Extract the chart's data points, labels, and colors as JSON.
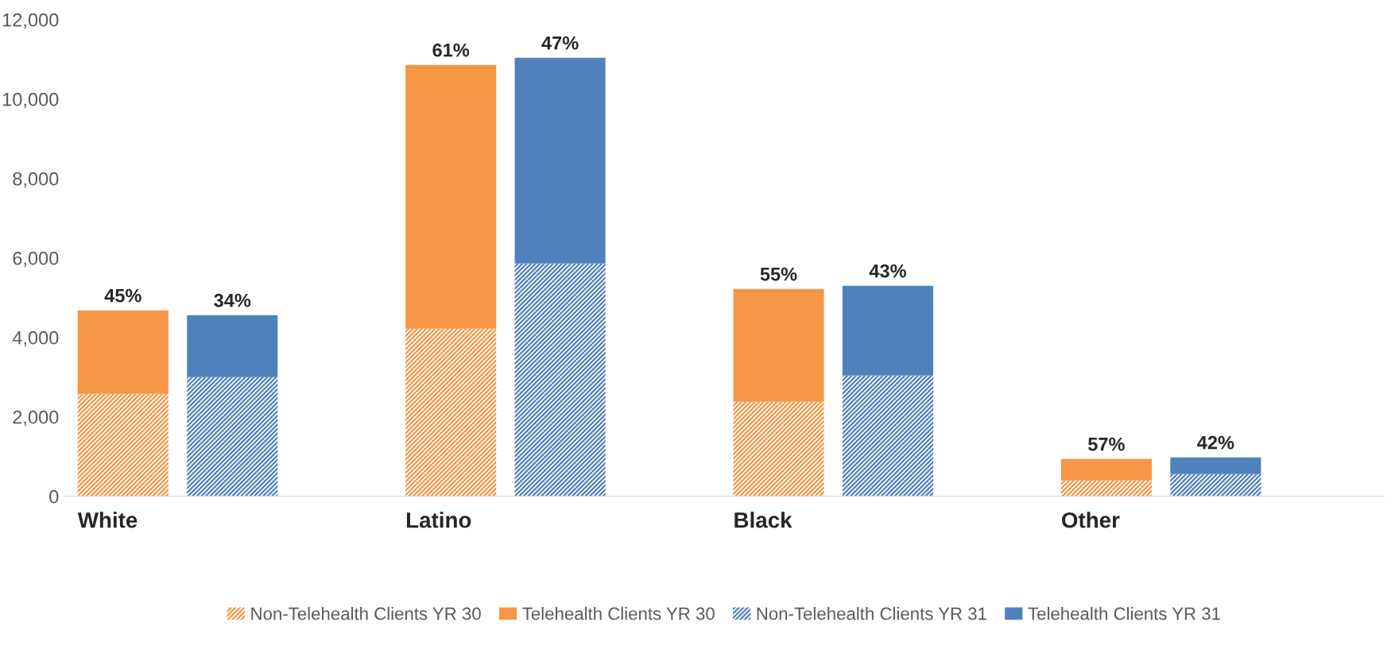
{
  "chart_data": {
    "type": "bar",
    "stacked": true,
    "categories": [
      "White",
      null,
      null,
      "Latino",
      null,
      null,
      "Black",
      null,
      null,
      "Other",
      null,
      null
    ],
    "series": [
      {
        "name": "Non-Telehealth Clients YR 30",
        "color": "#f79646",
        "values": [
          2580,
          null,
          null,
          4220,
          null,
          null,
          2380,
          null,
          null,
          400,
          null,
          null
        ]
      },
      {
        "name": "Telehealth Clients YR 30",
        "color": "#f79646",
        "values": [
          2100,
          null,
          null,
          6640,
          null,
          null,
          2840,
          null,
          null,
          540,
          null,
          null
        ]
      },
      {
        "name": "Non-Telehealth Clients YR 31",
        "color": "#4f81bd",
        "values": [
          null,
          3000,
          null,
          null,
          5860,
          null,
          null,
          3040,
          null,
          null,
          560,
          null
        ]
      },
      {
        "name": "Telehealth Clients YR 31",
        "color": "#4f81bd",
        "values": [
          null,
          1560,
          null,
          null,
          5180,
          null,
          null,
          2260,
          null,
          null,
          420,
          null
        ]
      }
    ],
    "annotations": [
      "45%",
      "34%",
      "61%",
      "47%",
      "55%",
      "43%",
      "57%",
      "42%"
    ],
    "ylim": [
      0,
      12000
    ],
    "yticks": [
      {
        "value": 0,
        "label": "0"
      },
      {
        "value": 2000,
        "label": "2,000"
      },
      {
        "value": 4000,
        "label": "4,000"
      },
      {
        "value": 6000,
        "label": "6,000"
      },
      {
        "value": 8000,
        "label": "8,000"
      },
      {
        "value": 10000,
        "label": "10,000"
      },
      {
        "value": 12000,
        "label": "12,000"
      }
    ],
    "grid": false,
    "legend": "bottom"
  }
}
